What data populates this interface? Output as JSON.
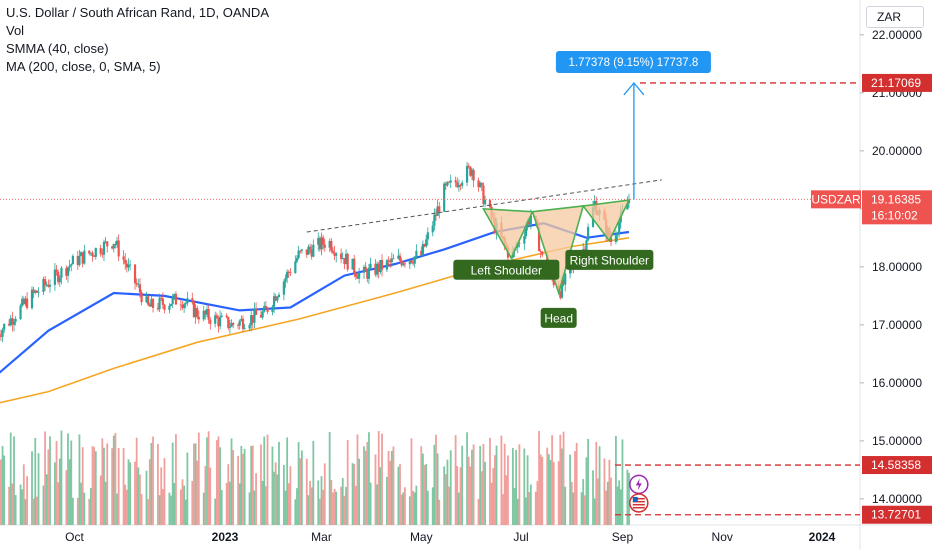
{
  "legend": {
    "title": "U.S. Dollar / South African Rand, 1D, OANDA",
    "vol": "Vol",
    "smma": "SMMA (40, close)",
    "ma": "MA (200, close, 0, SMA, 5)"
  },
  "currency_button": "ZAR",
  "colors": {
    "up": "#26a69a",
    "down": "#ef5350",
    "vol_up": "#7fc7a3",
    "vol_down": "#f0a09c",
    "smma": "#2962ff",
    "ma": "#f5a623",
    "pattern_fill": "#f5c9a0",
    "pattern_stroke": "#4caf50",
    "label_bg": "#33691e",
    "target_box": "#2196f3",
    "level_line": "#d32f2f"
  },
  "chart_data": {
    "type": "candlestick",
    "symbol": "USDZAR",
    "ylim": [
      13.55,
      22.6
    ],
    "y_ticks": [
      "22.00000",
      "21.00000",
      "20.00000",
      "19.00000",
      "18.00000",
      "17.00000",
      "16.00000",
      "15.00000",
      "14.00000"
    ],
    "x_ticks": [
      "Oct",
      "2023",
      "Mar",
      "May",
      "Jul",
      "Sep",
      "Nov",
      "2024"
    ],
    "price_key_points": [
      {
        "date": "2022-08-15",
        "close": 16.85
      },
      {
        "date": "2022-09-05",
        "close": 17.5
      },
      {
        "date": "2022-10-01",
        "close": 18.1
      },
      {
        "date": "2022-10-25",
        "close": 18.45
      },
      {
        "date": "2022-11-15",
        "close": 17.3
      },
      {
        "date": "2022-12-05",
        "close": 17.45
      },
      {
        "date": "2022-12-15",
        "close": 17.2
      },
      {
        "date": "2023-01-05",
        "close": 17.0
      },
      {
        "date": "2023-01-25",
        "close": 17.2
      },
      {
        "date": "2023-02-15",
        "close": 18.2
      },
      {
        "date": "2023-03-05",
        "close": 18.45
      },
      {
        "date": "2023-03-25",
        "close": 17.85
      },
      {
        "date": "2023-04-15",
        "close": 18.1
      },
      {
        "date": "2023-05-01",
        "close": 18.2
      },
      {
        "date": "2023-05-15",
        "close": 19.3
      },
      {
        "date": "2023-06-01",
        "close": 19.7
      },
      {
        "date": "2023-06-15",
        "close": 18.7
      },
      {
        "date": "2023-06-25",
        "close": 18.15
      },
      {
        "date": "2023-07-08",
        "close": 18.95
      },
      {
        "date": "2023-07-15",
        "close": 18.0
      },
      {
        "date": "2023-07-25",
        "close": 17.6
      },
      {
        "date": "2023-08-08",
        "close": 18.3
      },
      {
        "date": "2023-08-15",
        "close": 19.1
      },
      {
        "date": "2023-08-25",
        "close": 18.45
      },
      {
        "date": "2023-09-05",
        "close": 19.16
      }
    ],
    "smma_40": [
      {
        "date": "2022-08-15",
        "value": 16.15
      },
      {
        "date": "2022-09-15",
        "value": 16.9
      },
      {
        "date": "2022-10-25",
        "value": 17.55
      },
      {
        "date": "2022-11-25",
        "value": 17.5
      },
      {
        "date": "2023-01-10",
        "value": 17.25
      },
      {
        "date": "2023-02-10",
        "value": 17.3
      },
      {
        "date": "2023-03-15",
        "value": 17.85
      },
      {
        "date": "2023-04-15",
        "value": 18.05
      },
      {
        "date": "2023-05-15",
        "value": 18.3
      },
      {
        "date": "2023-06-15",
        "value": 18.6
      },
      {
        "date": "2023-07-15",
        "value": 18.75
      },
      {
        "date": "2023-08-10",
        "value": 18.5
      },
      {
        "date": "2023-09-05",
        "value": 18.6
      }
    ],
    "ma_200": [
      {
        "date": "2022-08-15",
        "value": 15.65
      },
      {
        "date": "2022-09-15",
        "value": 15.85
      },
      {
        "date": "2022-10-25",
        "value": 16.25
      },
      {
        "date": "2022-12-15",
        "value": 16.7
      },
      {
        "date": "2023-02-15",
        "value": 17.1
      },
      {
        "date": "2023-04-15",
        "value": 17.55
      },
      {
        "date": "2023-06-15",
        "value": 18.05
      },
      {
        "date": "2023-08-01",
        "value": 18.35
      },
      {
        "date": "2023-09-05",
        "value": 18.5
      }
    ],
    "annotations": {
      "pattern": "inverse head and shoulders",
      "neckline_start": {
        "date": "2023-02-20",
        "value": 18.6
      },
      "neckline_end": {
        "date": "2023-09-25",
        "value": 19.5
      },
      "pattern_points": [
        {
          "date": "2023-06-08",
          "value": 19.0
        },
        {
          "date": "2023-06-25",
          "value": 18.15
        },
        {
          "date": "2023-07-08",
          "value": 18.95
        },
        {
          "date": "2023-07-24",
          "value": 17.55
        },
        {
          "date": "2023-08-08",
          "value": 19.05
        },
        {
          "date": "2023-08-24",
          "value": 18.45
        },
        {
          "date": "2023-09-05",
          "value": 19.15
        }
      ],
      "labels": [
        "Left Shoulder",
        "Head",
        "Right Shoulder"
      ],
      "target_text": "1.77378 (9.15%) 17737.8",
      "target_arrow_from": 19.16,
      "target_arrow_to": 21.17
    },
    "price_labels": [
      {
        "name": "target",
        "text": "21.17069",
        "value": 21.17069
      },
      {
        "name": "current",
        "symbol": "USDZAR",
        "text": "19.16385",
        "countdown": "16:10:02",
        "value": 19.16385
      },
      {
        "name": "level-1",
        "text": "14.58358",
        "value": 14.58358
      },
      {
        "name": "level-2",
        "text": "13.72701",
        "value": 13.72701
      }
    ]
  }
}
